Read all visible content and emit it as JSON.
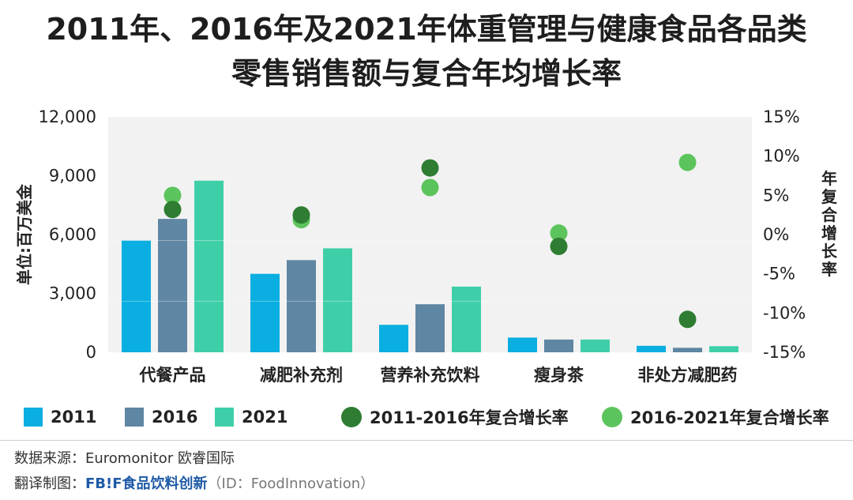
{
  "header": {
    "title_line1": "2011年、2016年及2021年体重管理与健康食品各品类",
    "title_line2": "零售销售额与复合年均增长率"
  },
  "colors": {
    "s2011": "#0aaee0",
    "s2016": "#5f86a2",
    "s2021": "#3fcfa8",
    "cagr1": "#2e7d32",
    "cagr2": "#5cc45c",
    "plot_bg": "#f2f2f2"
  },
  "legend": {
    "l2011": "2011",
    "l2016": "2016",
    "l2021": "2021",
    "lcagr1": "2011-2016年复合增长率",
    "lcagr2": "2016-2021年复合增长率"
  },
  "footer": {
    "source": "数据来源：Euromonitor 欧睿国际",
    "credit_prefix": "翻译制图：",
    "credit_brand": "FB!F食品饮料创新",
    "credit_id": "（ID：FoodInnovation）"
  },
  "chart_data": {
    "type": "bar",
    "categories": [
      "代餐产品",
      "减肥补充剂",
      "营养补充饮料",
      "瘦身茶",
      "非处方减肥药"
    ],
    "series": [
      {
        "name": "2011",
        "values": [
          5700,
          4000,
          1400,
          750,
          330
        ]
      },
      {
        "name": "2016",
        "values": [
          6800,
          4700,
          2450,
          650,
          230
        ]
      },
      {
        "name": "2021",
        "values": [
          8750,
          5300,
          3350,
          650,
          310
        ]
      }
    ],
    "line_series": [
      {
        "name": "2011-2016年复合增长率",
        "values": [
          3.2,
          2.5,
          8.5,
          -1.5,
          -10.8
        ]
      },
      {
        "name": "2016-2021年复合增长率",
        "values": [
          5.0,
          1.9,
          6.0,
          0.2,
          9.2
        ]
      }
    ],
    "ylabel": "单位:百万美金",
    "y2label": "年复合增长率",
    "ylim": [
      0,
      12000
    ],
    "y2lim": [
      -15,
      15
    ],
    "yticks": [
      "0",
      "3,000",
      "6,000",
      "9,000",
      "12,000"
    ],
    "y2ticks": [
      "-15%",
      "-10%",
      "-5%",
      "0%",
      "5%",
      "10%",
      "15%"
    ]
  }
}
